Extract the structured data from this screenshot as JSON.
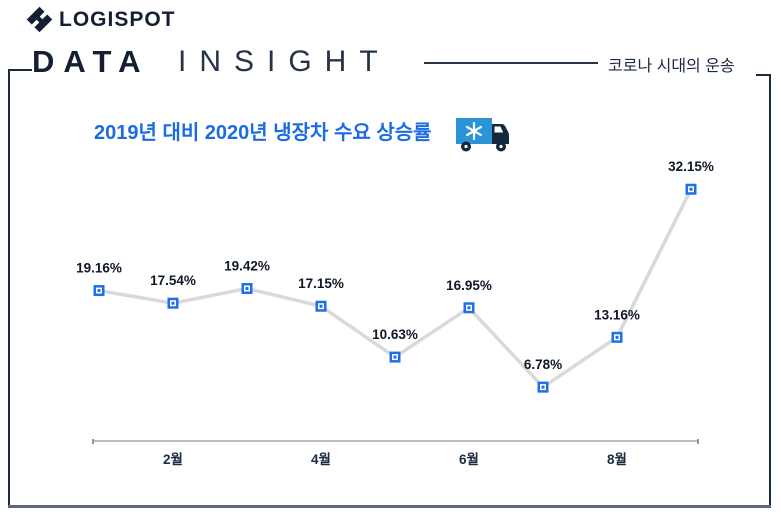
{
  "header": {
    "logo_text": "LOGISPOT",
    "masthead_bold": "DATA",
    "masthead_light": "INSIGHT",
    "tagline": "코로나 시대의 운송"
  },
  "chart": {
    "title": "2019년 대비 2020년 냉장차 수요 상승률",
    "title_icon": "refrigerated-truck-icon"
  },
  "chart_data": {
    "type": "line",
    "title": "2019년 대비 2020년 냉장차 수요 상승률",
    "values": [
      19.16,
      17.54,
      19.42,
      17.15,
      10.63,
      16.95,
      6.78,
      13.16,
      32.15
    ],
    "data_labels": [
      "19.16%",
      "17.54%",
      "19.42%",
      "17.15%",
      "10.63%",
      "16.95%",
      "6.78%",
      "13.16%",
      "32.15%"
    ],
    "x_tick_labels": [
      "2월",
      "4월",
      "6월",
      "8월"
    ],
    "x_tick_point_indices": [
      1,
      3,
      5,
      7
    ],
    "xlabel": "",
    "ylabel": "",
    "ylim": [
      0,
      35
    ],
    "grid": false,
    "legend": false,
    "marker": "square",
    "colors": {
      "marker": "#1f6fe8",
      "line": "#d9d9d9",
      "data_label": "#101826",
      "axis": "#a3a9b0",
      "tick_label": "#1c2c44"
    }
  },
  "colors": {
    "brand_navy": "#141f33",
    "accent_blue": "#1d6ce2",
    "truck_body_blue": "#2a94d6",
    "truck_cab_navy": "#14293e",
    "frame_bottom_slate": "#5a6a7d"
  }
}
